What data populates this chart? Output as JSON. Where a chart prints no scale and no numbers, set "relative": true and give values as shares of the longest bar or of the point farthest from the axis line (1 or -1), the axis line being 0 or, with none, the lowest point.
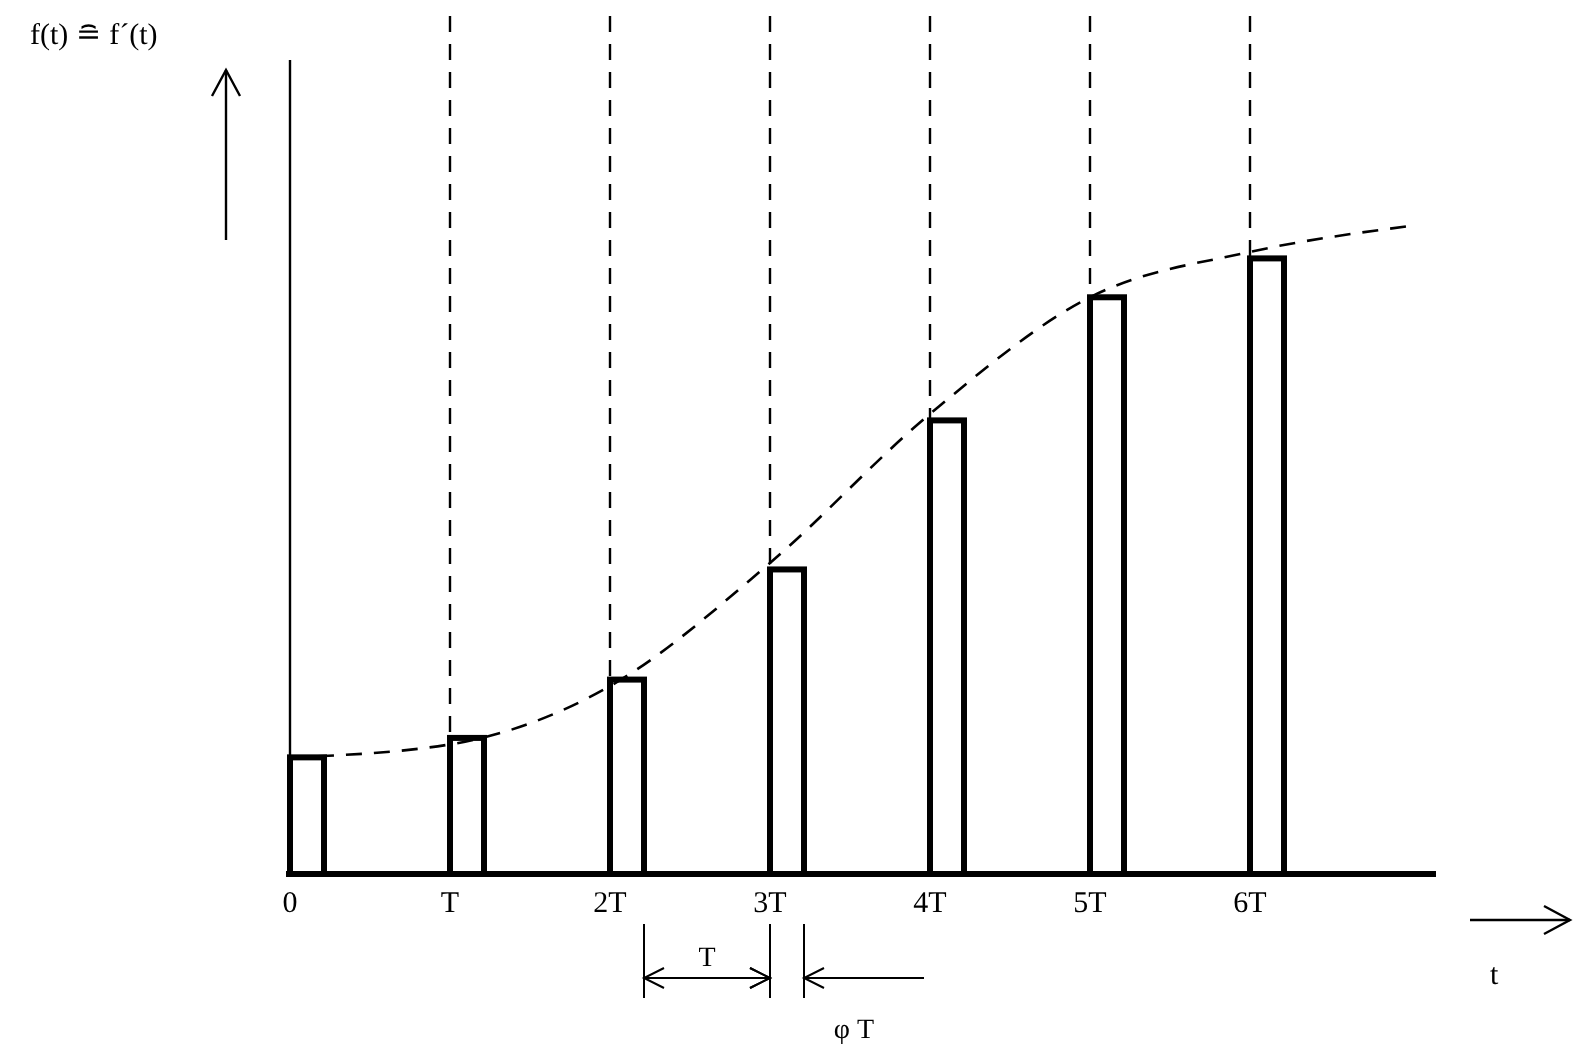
{
  "chart_data": {
    "type": "bar",
    "relative": true,
    "xlabel": "t",
    "categories": [
      "0",
      "T",
      "2T",
      "3T",
      "4T",
      "5T",
      "6T",
      null
    ],
    "series": [
      {
        "color": "#ffffff",
        "values": [
          0.18,
          0.21,
          0.3,
          0.47,
          0.7,
          0.89,
          0.95,
          null
        ]
      },
      {
        "type": "line",
        "color": "#000000",
        "line_style": "dashed",
        "values": [
          0.18,
          0.2,
          0.29,
          0.48,
          0.71,
          0.89,
          0.96,
          1.0
        ]
      }
    ],
    "ref_lines": [
      {
        "axis": "x",
        "value": "T",
        "line_style": "dashed"
      },
      {
        "axis": "x",
        "value": "2T",
        "line_style": "dashed"
      },
      {
        "axis": "x",
        "value": "3T",
        "line_style": "dashed"
      },
      {
        "axis": "x",
        "value": "4T",
        "line_style": "dashed"
      },
      {
        "axis": "x",
        "value": "5T",
        "line_style": "dashed"
      },
      {
        "axis": "x",
        "value": "6T",
        "line_style": "dashed"
      }
    ],
    "annotations": [
      "T",
      "φ T",
      "f(t) ≘ f´(t)"
    ]
  }
}
